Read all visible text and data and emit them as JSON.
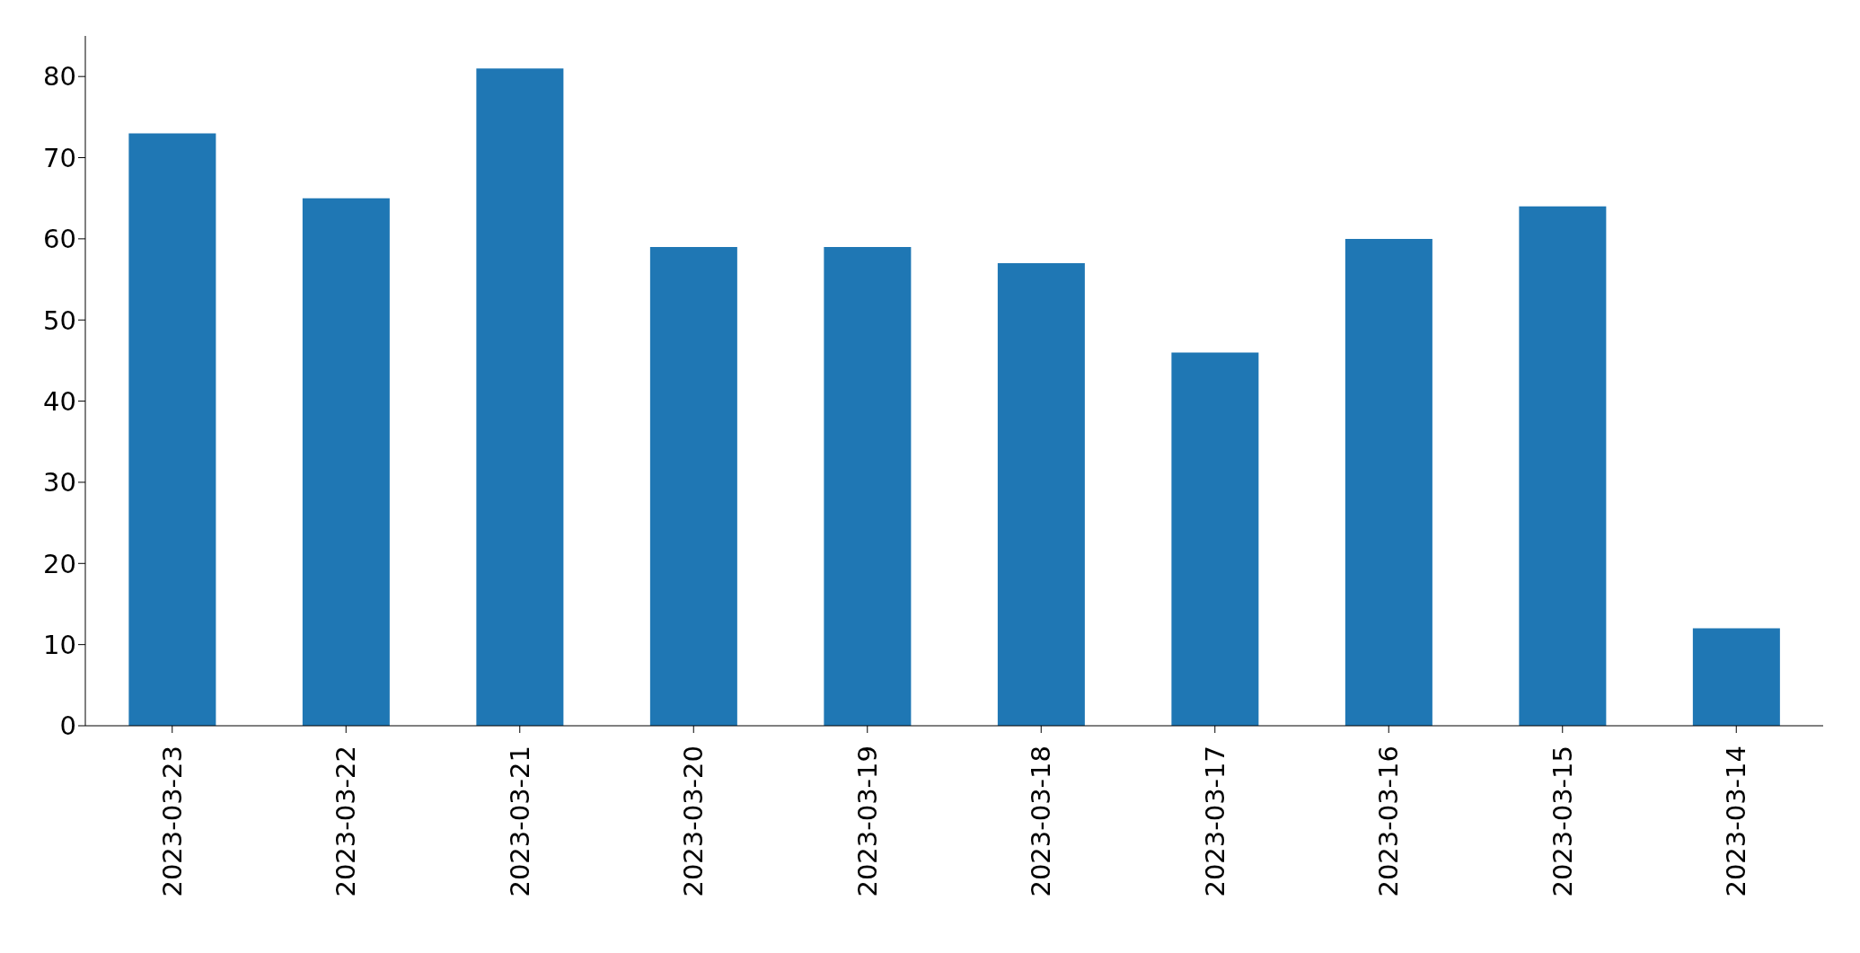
{
  "chart_data": {
    "type": "bar",
    "categories": [
      "2023-03-23",
      "2023-03-22",
      "2023-03-21",
      "2023-03-20",
      "2023-03-19",
      "2023-03-18",
      "2023-03-17",
      "2023-03-16",
      "2023-03-15",
      "2023-03-14"
    ],
    "values": [
      73,
      65,
      81,
      59,
      59,
      57,
      46,
      60,
      64,
      12
    ],
    "color": "#1f77b4",
    "ylim": [
      0,
      85
    ],
    "yticks": [
      0,
      10,
      20,
      30,
      40,
      50,
      60,
      70,
      80
    ],
    "grid": false,
    "legend": false
  }
}
